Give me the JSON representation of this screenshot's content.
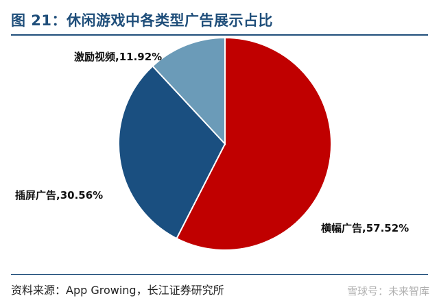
{
  "title": "图 21：休闲游戏中各类型广告展示占比",
  "source": "资料来源：App Growing，长江证券研究所",
  "watermark": "雪球号：未来智库",
  "colors": {
    "title": "#1f4e7a",
    "banner": "#c00000",
    "interstitial": "#1a4f80",
    "rewarded_video": "#6b9bb8"
  },
  "chart_data": {
    "type": "pie",
    "title": "图 21：休闲游戏中各类型广告展示占比",
    "start_angle_deg": 0,
    "direction": "clockwise",
    "slices": [
      {
        "label": "横幅广告,57.52%",
        "name": "横幅广告",
        "value": 57.52,
        "color": "#c00000"
      },
      {
        "label": "插屏广告,30.56%",
        "name": "插屏广告",
        "value": 30.56,
        "color": "#1a4f80"
      },
      {
        "label": "激励视频,11.92%",
        "name": "激励视频",
        "value": 11.92,
        "color": "#6b9bb8"
      }
    ]
  }
}
